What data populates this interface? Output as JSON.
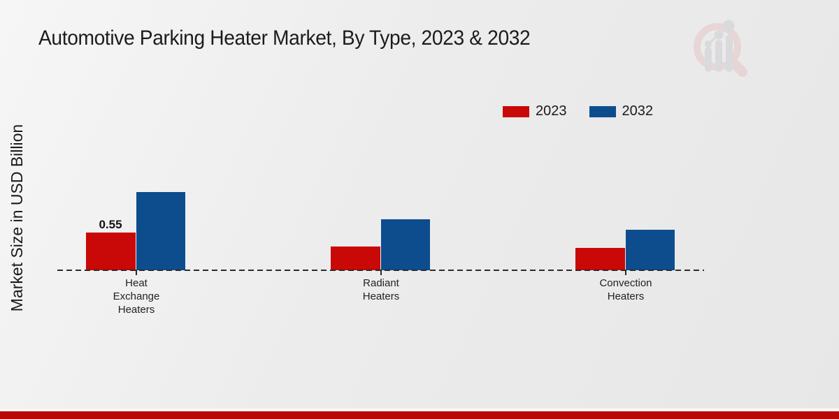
{
  "chart_data": {
    "type": "bar",
    "title": "Automotive Parking Heater Market, By Type, 2023 & 2032",
    "ylabel": "Market Size in USD Billion",
    "xlabel": "",
    "categories": [
      "Heat Exchange Heaters",
      "Radiant Heaters",
      "Convection Heaters"
    ],
    "series": [
      {
        "name": "2023",
        "color": "#c90808",
        "values": [
          0.55,
          0.35,
          0.33
        ]
      },
      {
        "name": "2032",
        "color": "#0d4d8e",
        "values": [
          1.15,
          0.75,
          0.6
        ]
      }
    ],
    "bar_labels": [
      {
        "category_index": 0,
        "series_index": 0,
        "text": "0.55"
      }
    ],
    "ylim": [
      0,
      1.3
    ],
    "legend_position": "top-right",
    "axis": {
      "baseline_style": "dashed",
      "gridlines": false,
      "y_ticks_shown": false
    }
  },
  "icons": {
    "watermark": "magnifier-bar-chart-watermark"
  },
  "colors": {
    "background": "#ebebeb",
    "footer_bar": "#b80707",
    "title_text": "#1c1c1c",
    "axis_line": "#2b2b2b",
    "watermark_ring": "#e7cbcb",
    "watermark_bars": "#d2d3d6"
  }
}
